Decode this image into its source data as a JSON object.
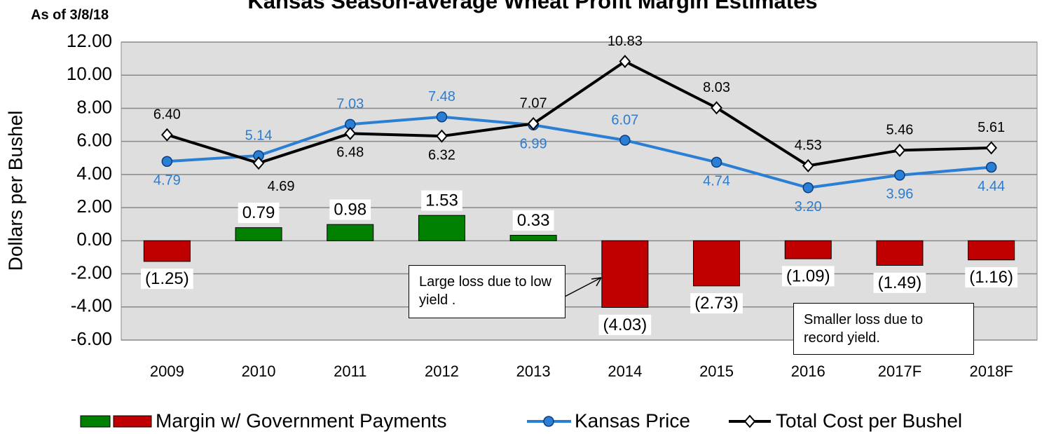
{
  "chart_data": {
    "type": "combo",
    "title": "Kansas Season-average Wheat Profit Margin Estimates",
    "subtitle": "As of 3/8/18",
    "y_label": "Dollars per Bushel",
    "categories": [
      "2009",
      "2010",
      "2011",
      "2012",
      "2013",
      "2014",
      "2015",
      "2016",
      "2017F",
      "2018F"
    ],
    "ylim": [
      -6,
      12
    ],
    "yticks": [
      {
        "value": -6,
        "label": "-6.00"
      },
      {
        "value": -4,
        "label": "-4.00"
      },
      {
        "value": -2,
        "label": "-2.00"
      },
      {
        "value": 0,
        "label": "0.00"
      },
      {
        "value": 2,
        "label": "2.00"
      },
      {
        "value": 4,
        "label": "4.00"
      },
      {
        "value": 6,
        "label": "6.00"
      },
      {
        "value": 8,
        "label": "8.00"
      },
      {
        "value": 10,
        "label": "10.00"
      },
      {
        "value": 12,
        "label": "12.00"
      }
    ],
    "grid": true,
    "series": [
      {
        "name": "Margin w/ Government Payments",
        "type": "bar",
        "color": "#008000",
        "negative_color": "#c00000",
        "values": [
          -1.25,
          0.79,
          0.98,
          1.53,
          0.33,
          -4.03,
          -2.73,
          -1.09,
          -1.49,
          -1.16
        ],
        "value_labels": [
          "(1.25)",
          "0.79",
          "0.98",
          "1.53",
          "0.33",
          "(4.03)",
          "(2.73)",
          "(1.09)",
          "(1.49)",
          "(1.16)"
        ]
      },
      {
        "name": "Kansas Price",
        "type": "line",
        "color": "#2a7fd4",
        "values": [
          4.79,
          5.14,
          7.03,
          7.48,
          6.99,
          6.07,
          4.74,
          3.2,
          3.96,
          4.44
        ],
        "value_labels": [
          "4.79",
          "5.14",
          "7.03",
          "7.48",
          "6.99",
          "6.07",
          "4.74",
          "3.20",
          "3.96",
          "4.44"
        ]
      },
      {
        "name": "Total Cost per Bushel",
        "type": "line",
        "color": "#000000",
        "values": [
          6.4,
          4.69,
          6.48,
          6.32,
          7.07,
          10.83,
          8.03,
          4.53,
          5.46,
          5.61
        ],
        "value_labels": [
          "6.40",
          "4.69",
          "6.48",
          "6.32",
          "7.07",
          "10.83",
          "8.03",
          "4.53",
          "5.46",
          "5.61"
        ]
      }
    ],
    "annotations": [
      "Large loss due to low yield .",
      "Smaller loss due to record yield."
    ]
  }
}
